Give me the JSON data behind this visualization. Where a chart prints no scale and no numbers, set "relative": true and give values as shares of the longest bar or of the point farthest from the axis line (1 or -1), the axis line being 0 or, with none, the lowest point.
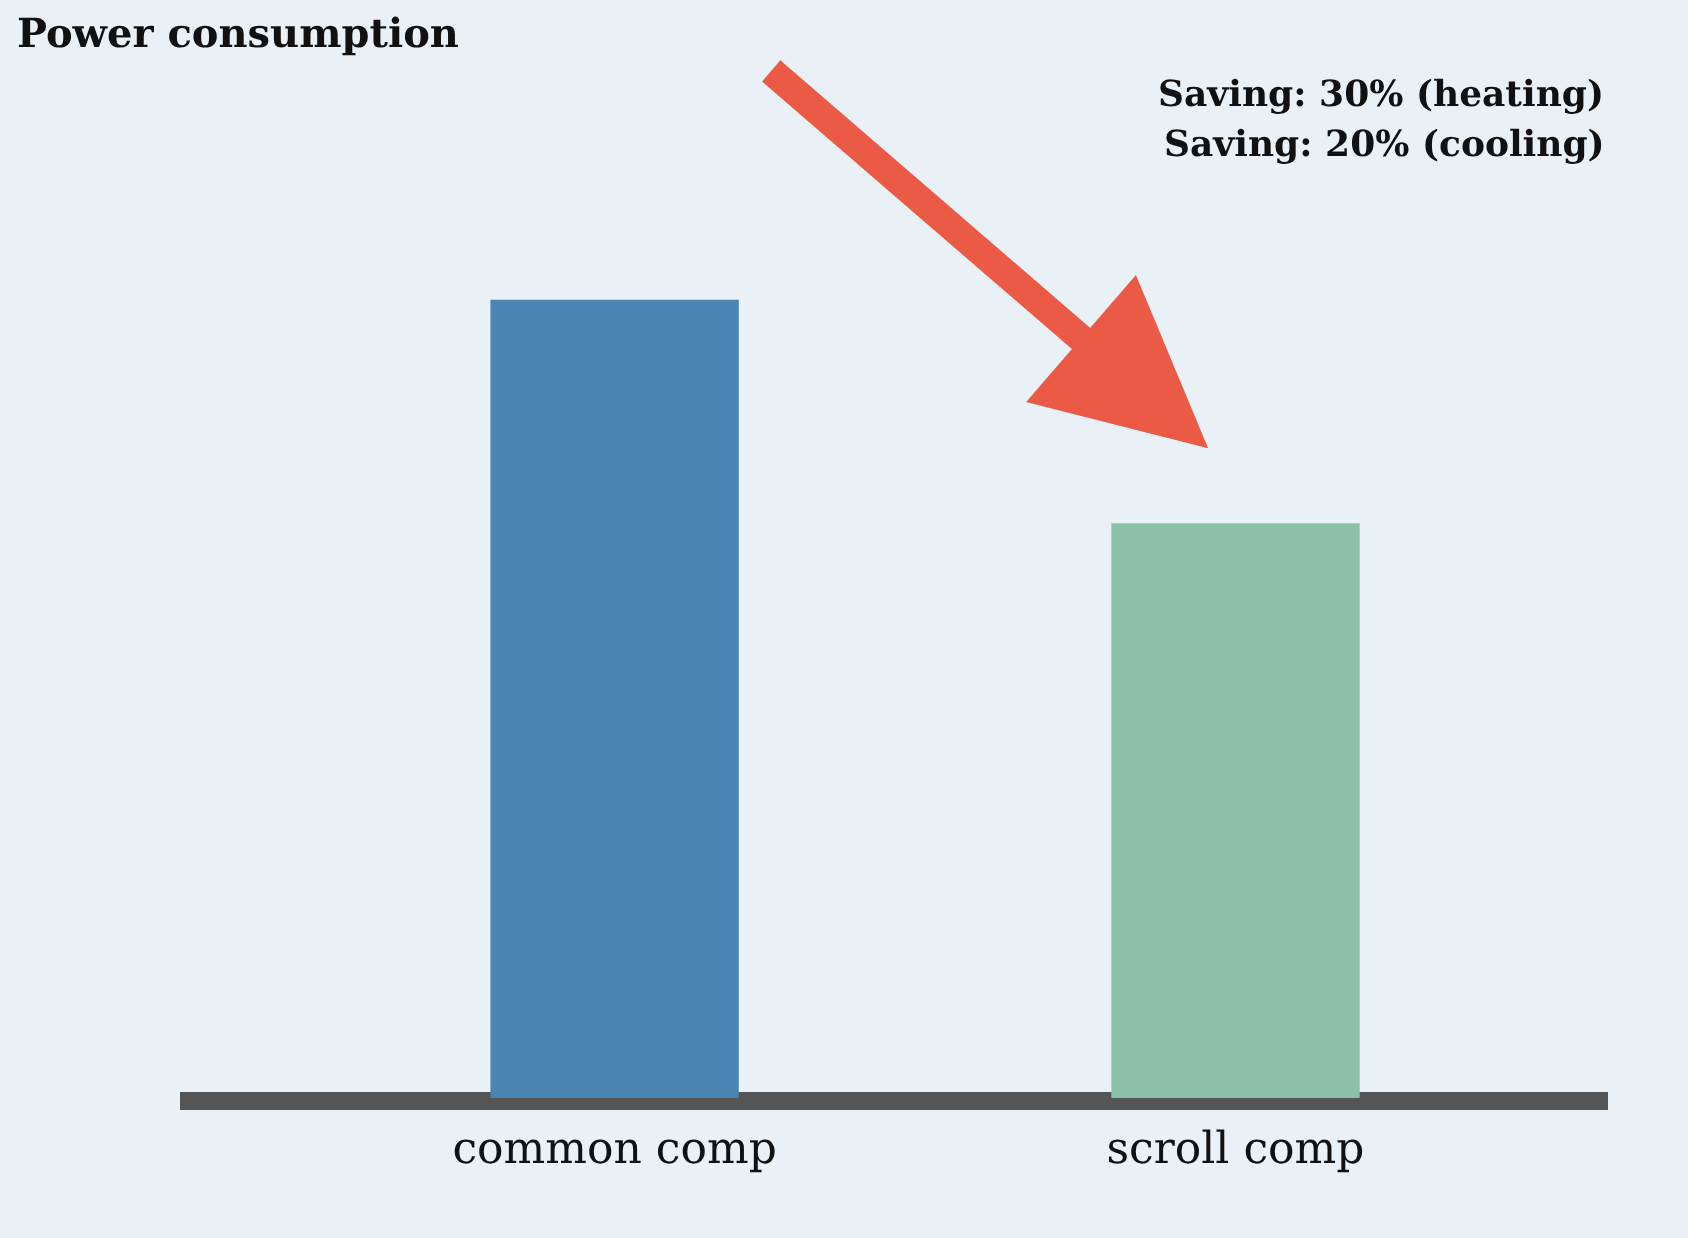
{
  "chart_data": {
    "type": "bar",
    "relative": true,
    "title": "Power consumption",
    "annotations": [
      "Saving: 30% (heating)",
      "Saving: 20% (cooling)"
    ],
    "categories": [
      "common comp",
      "scroll comp"
    ],
    "values": [
      1,
      0.72
    ],
    "colors": [
      "#4a84b4",
      "#8cc0a8"
    ],
    "grid": false
  }
}
